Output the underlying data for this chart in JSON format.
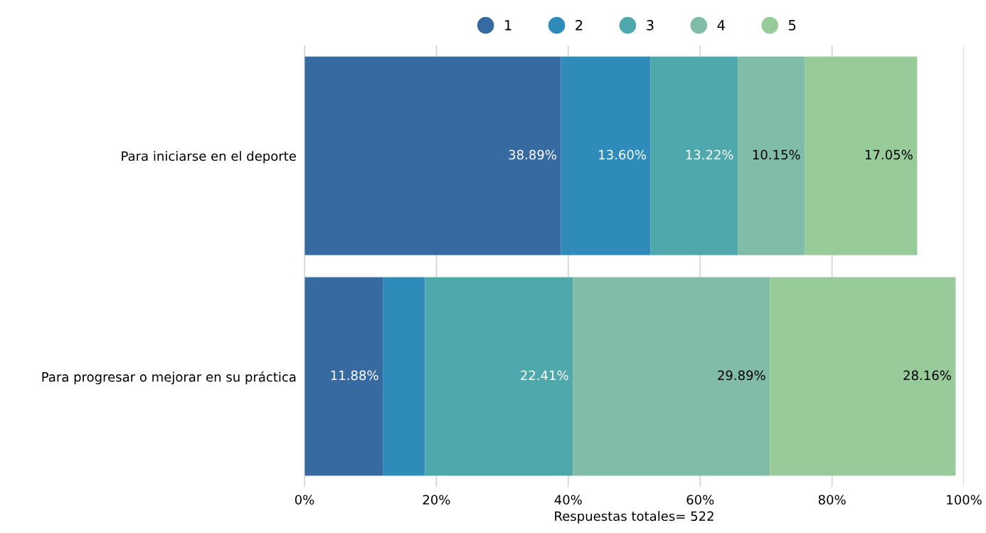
{
  "chart_data": {
    "type": "bar",
    "orientation": "horizontal",
    "stacked": true,
    "categories": [
      "Para iniciarse en el deporte",
      "Para progresar o mejorar en su práctica"
    ],
    "series": [
      {
        "name": "1",
        "color": "#376aa0",
        "values": [
          38.89,
          11.88
        ],
        "value_labels": [
          "38.89%",
          "11.88%"
        ]
      },
      {
        "name": "2",
        "color": "#2e8bba",
        "values": [
          13.6,
          6.4
        ],
        "value_labels": [
          "13.60%",
          null
        ]
      },
      {
        "name": "3",
        "color": "#4fa8ab",
        "values": [
          13.22,
          22.41
        ],
        "value_labels": [
          "13.22%",
          "22.41%"
        ]
      },
      {
        "name": "4",
        "color": "#80bca8",
        "values": [
          10.15,
          29.89
        ],
        "value_labels": [
          "10.15%",
          "29.89%"
        ]
      },
      {
        "name": "5",
        "color": "#98cb9a",
        "values": [
          17.05,
          28.16
        ],
        "value_labels": [
          "17.05%",
          "28.16%"
        ]
      }
    ],
    "xlim": [
      0,
      100
    ],
    "xticks": [
      {
        "value": 0,
        "label": "0%"
      },
      {
        "value": 20,
        "label": "20%"
      },
      {
        "value": 40,
        "label": "40%"
      },
      {
        "value": 60,
        "label": "60%"
      },
      {
        "value": 80,
        "label": "80%"
      },
      {
        "value": 100,
        "label": "100%"
      }
    ],
    "xlabel": "Respuestas totales= 522",
    "grid": "x",
    "legend": "top",
    "marker": "circle"
  }
}
